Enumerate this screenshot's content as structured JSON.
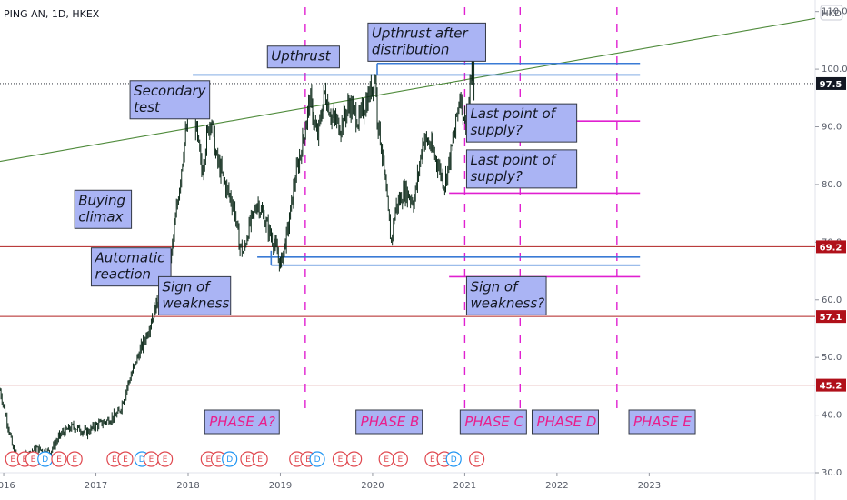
{
  "header": {
    "symbol": "PING AN, 1D, HKEX",
    "currency": "HKD"
  },
  "chart_data": {
    "type": "line",
    "ylim": [
      30,
      112
    ],
    "x_range": [
      2015.96,
      2024.8
    ],
    "y_ticks": [
      30,
      40,
      50,
      60,
      70,
      80,
      90,
      100,
      110
    ],
    "y_tick_labels": [
      "30.0",
      "40.0",
      "50.0",
      "60.0",
      "70.0",
      "80.0",
      "90.0",
      "100.0",
      "110.0"
    ],
    "x_ticks": [
      2016,
      2017,
      2018,
      2019,
      2020,
      2021,
      2022,
      2023
    ],
    "x_tick_labels": [
      "2016",
      "2017",
      "2018",
      "2019",
      "2020",
      "2021",
      "2022",
      "2023"
    ],
    "last_price": {
      "value": 97.5,
      "label": "97.5"
    },
    "price_series": [
      [
        2015.96,
        44.3
      ],
      [
        2016.05,
        38
      ],
      [
        2016.1,
        34
      ],
      [
        2016.15,
        32.6
      ],
      [
        2016.25,
        33
      ],
      [
        2016.35,
        34.2
      ],
      [
        2016.5,
        33.6
      ],
      [
        2016.62,
        36.7
      ],
      [
        2016.75,
        38
      ],
      [
        2016.9,
        37
      ],
      [
        2017.0,
        38.2
      ],
      [
        2017.12,
        39
      ],
      [
        2017.25,
        40.4
      ],
      [
        2017.35,
        45.5
      ],
      [
        2017.45,
        50
      ],
      [
        2017.55,
        54
      ],
      [
        2017.65,
        59
      ],
      [
        2017.75,
        63.5
      ],
      [
        2017.82,
        68
      ],
      [
        2017.9,
        79
      ],
      [
        2017.95,
        86
      ],
      [
        2018.02,
        93.5
      ],
      [
        2018.05,
        95
      ],
      [
        2018.1,
        88
      ],
      [
        2018.15,
        82
      ],
      [
        2018.2,
        88
      ],
      [
        2018.25,
        92
      ],
      [
        2018.3,
        85
      ],
      [
        2018.4,
        80
      ],
      [
        2018.5,
        76
      ],
      [
        2018.55,
        70
      ],
      [
        2018.6,
        68
      ],
      [
        2018.65,
        72
      ],
      [
        2018.75,
        77
      ],
      [
        2018.85,
        73
      ],
      [
        2018.95,
        69
      ],
      [
        2019.0,
        66
      ],
      [
        2019.08,
        72
      ],
      [
        2019.15,
        80
      ],
      [
        2019.25,
        88
      ],
      [
        2019.32,
        95
      ],
      [
        2019.4,
        88
      ],
      [
        2019.48,
        96
      ],
      [
        2019.55,
        92
      ],
      [
        2019.65,
        90
      ],
      [
        2019.75,
        94
      ],
      [
        2019.85,
        91
      ],
      [
        2019.95,
        95
      ],
      [
        2020.03,
        99
      ],
      [
        2020.05,
        92
      ],
      [
        2020.1,
        86
      ],
      [
        2020.2,
        70
      ],
      [
        2020.25,
        76
      ],
      [
        2020.35,
        79
      ],
      [
        2020.45,
        77
      ],
      [
        2020.55,
        88
      ],
      [
        2020.62,
        87
      ],
      [
        2020.7,
        84
      ],
      [
        2020.78,
        80
      ],
      [
        2020.88,
        88
      ],
      [
        2020.95,
        96
      ],
      [
        2021.0,
        91
      ],
      [
        2021.05,
        94
      ],
      [
        2021.08,
        103.5
      ],
      [
        2021.1,
        97.5
      ]
    ],
    "wyckoff_trendline": {
      "from": [
        2015.96,
        84
      ],
      "to": [
        2024.8,
        108.8
      ]
    },
    "horizontal_levels": [
      {
        "value": 69.2,
        "label": "69.2"
      },
      {
        "value": 57.1,
        "label": "57.1"
      },
      {
        "value": 45.2,
        "label": "45.2"
      }
    ],
    "resistance_lines": [
      {
        "from": [
          2018.05,
          99
        ],
        "to": [
          2022.9,
          99
        ]
      },
      {
        "from": [
          2020.05,
          101
        ],
        "to": [
          2022.9,
          101
        ]
      }
    ],
    "support_lines": [
      {
        "from": [
          2018.9,
          66
        ],
        "to": [
          2022.9,
          66
        ]
      },
      {
        "from": [
          2018.75,
          67.4
        ],
        "to": [
          2022.9,
          67.4
        ]
      }
    ],
    "lps_lines": [
      {
        "from": [
          2021.0,
          91
        ],
        "to": [
          2022.9,
          91
        ]
      },
      {
        "from": [
          2020.83,
          78.5
        ],
        "to": [
          2022.9,
          78.5
        ]
      },
      {
        "from": [
          2020.83,
          64
        ],
        "to": [
          2022.9,
          64
        ]
      }
    ],
    "phase_separators": [
      2019.27,
      2021.0,
      2021.6,
      2022.65
    ],
    "annotations": [
      {
        "text": [
          "Buying",
          "climax"
        ],
        "anchor": [
          2016.77,
          79
        ]
      },
      {
        "text": [
          "Secondary",
          "test"
        ],
        "anchor": [
          2017.37,
          98
        ]
      },
      {
        "text": [
          "Upthrust"
        ],
        "anchor": [
          2018.86,
          104
        ]
      },
      {
        "text": [
          "Upthrust after",
          "distribution"
        ],
        "anchor": [
          2019.95,
          108
        ]
      },
      {
        "text": [
          "Automatic",
          "reaction"
        ],
        "anchor": [
          2016.95,
          69
        ]
      },
      {
        "text": [
          "Sign of",
          "weakness"
        ],
        "anchor": [
          2017.68,
          64
        ]
      },
      {
        "text": [
          "Last point of",
          "supply?"
        ],
        "anchor": [
          2021.02,
          94
        ]
      },
      {
        "text": [
          "Last point of",
          "supply?"
        ],
        "anchor": [
          2021.02,
          86
        ]
      },
      {
        "text": [
          "Sign of",
          "weakness?"
        ],
        "anchor": [
          2021.02,
          64
        ]
      }
    ],
    "phase_labels": [
      {
        "text": "PHASE A?",
        "x": 2018.18
      },
      {
        "text": "PHASE B",
        "x": 2019.82
      },
      {
        "text": "PHASE C",
        "x": 2020.95
      },
      {
        "text": "PHASE D",
        "x": 2021.73
      },
      {
        "text": "PHASE E",
        "x": 2022.78
      }
    ],
    "events": [
      {
        "x": 2016.1,
        "label": "E",
        "color": "#e0484f"
      },
      {
        "x": 2016.23,
        "label": "E",
        "color": "#e0484f"
      },
      {
        "x": 2016.32,
        "label": "E",
        "color": "#e0484f"
      },
      {
        "x": 2016.45,
        "label": "D",
        "color": "#2196f3"
      },
      {
        "x": 2016.6,
        "label": "E",
        "color": "#e0484f"
      },
      {
        "x": 2016.77,
        "label": "E",
        "color": "#e0484f"
      },
      {
        "x": 2017.2,
        "label": "E",
        "color": "#e0484f"
      },
      {
        "x": 2017.32,
        "label": "E",
        "color": "#e0484f"
      },
      {
        "x": 2017.5,
        "label": "D",
        "color": "#2196f3"
      },
      {
        "x": 2017.6,
        "label": "E",
        "color": "#e0484f"
      },
      {
        "x": 2017.75,
        "label": "E",
        "color": "#e0484f"
      },
      {
        "x": 2018.22,
        "label": "E",
        "color": "#e0484f"
      },
      {
        "x": 2018.33,
        "label": "E",
        "color": "#e0484f"
      },
      {
        "x": 2018.45,
        "label": "D",
        "color": "#2196f3"
      },
      {
        "x": 2018.65,
        "label": "E",
        "color": "#e0484f"
      },
      {
        "x": 2018.78,
        "label": "E",
        "color": "#e0484f"
      },
      {
        "x": 2019.18,
        "label": "E",
        "color": "#e0484f"
      },
      {
        "x": 2019.3,
        "label": "E",
        "color": "#e0484f"
      },
      {
        "x": 2019.4,
        "label": "D",
        "color": "#2196f3"
      },
      {
        "x": 2019.65,
        "label": "E",
        "color": "#e0484f"
      },
      {
        "x": 2019.8,
        "label": "E",
        "color": "#e0484f"
      },
      {
        "x": 2020.15,
        "label": "E",
        "color": "#e0484f"
      },
      {
        "x": 2020.3,
        "label": "E",
        "color": "#e0484f"
      },
      {
        "x": 2020.65,
        "label": "E",
        "color": "#e0484f"
      },
      {
        "x": 2020.78,
        "label": "E",
        "color": "#e0484f"
      },
      {
        "x": 2020.88,
        "label": "D",
        "color": "#2196f3"
      },
      {
        "x": 2021.13,
        "label": "E",
        "color": "#e0484f"
      }
    ]
  },
  "colors": {
    "candle": "#0d2a1a",
    "trendline": "#4e8a3a",
    "level_line": "#b02020",
    "level_tag": "#b0101a",
    "blue_line": "#3a7bd5",
    "magenta_line": "#e020d0",
    "phase_sep": "#e020d0",
    "annotation_fill": "#aab4f4",
    "annotation_border": "#333844",
    "phase_fill": "#aab4f4",
    "phase_text": "#e91e8c",
    "price_tag": "#131722",
    "axis": "#e0e3eb",
    "tick_text": "#555a66"
  }
}
